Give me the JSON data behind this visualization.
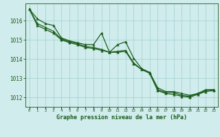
{
  "hours": [
    0,
    1,
    2,
    3,
    4,
    5,
    6,
    7,
    8,
    9,
    10,
    11,
    12,
    13,
    14,
    15,
    16,
    17,
    18,
    19,
    20,
    21,
    22,
    23
  ],
  "line1": [
    1016.6,
    1016.1,
    1015.85,
    1015.75,
    1015.1,
    1014.95,
    1014.85,
    1014.75,
    1014.75,
    1015.35,
    1014.35,
    1014.75,
    1014.9,
    1014.05,
    1013.5,
    1013.3,
    1012.5,
    1012.3,
    1012.3,
    1012.2,
    1012.1,
    1012.2,
    1012.4,
    1012.4
  ],
  "line2": [
    1016.6,
    1015.85,
    1015.65,
    1015.45,
    1015.05,
    1014.9,
    1014.8,
    1014.65,
    1014.6,
    1014.5,
    1014.35,
    1014.4,
    1014.45,
    1013.8,
    1013.45,
    1013.3,
    1012.4,
    1012.25,
    1012.25,
    1012.1,
    1012.05,
    1012.2,
    1012.35,
    1012.4
  ],
  "line3": [
    1016.6,
    1015.75,
    1015.55,
    1015.35,
    1015.0,
    1014.85,
    1014.75,
    1014.6,
    1014.55,
    1014.45,
    1014.35,
    1014.35,
    1014.4,
    1013.75,
    1013.45,
    1013.25,
    1012.35,
    1012.2,
    1012.15,
    1012.05,
    1012.0,
    1012.15,
    1012.3,
    1012.35
  ],
  "bg_color": "#d0ecec",
  "grid_color": "#a8d4d4",
  "line_color": "#1a5c1a",
  "title": "Graphe pression niveau de la mer (hPa)",
  "ylim": [
    1011.5,
    1016.9
  ],
  "yticks": [
    1012,
    1013,
    1014,
    1015,
    1016
  ],
  "xlim": [
    -0.5,
    23.5
  ]
}
